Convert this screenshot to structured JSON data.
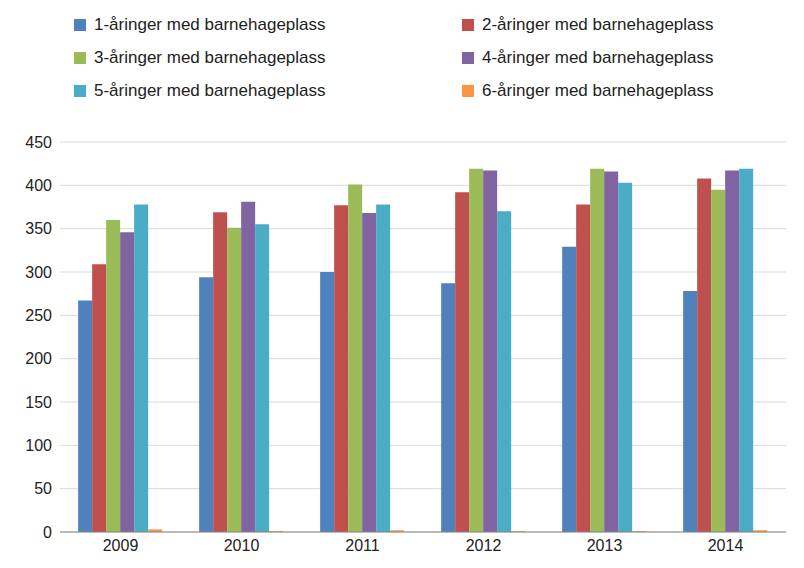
{
  "chart_data": {
    "type": "bar",
    "categories": [
      "2009",
      "2010",
      "2011",
      "2012",
      "2013",
      "2014"
    ],
    "series": [
      {
        "name": "1-åringer med barnehageplass",
        "color": "#4f81bd",
        "values": [
          267,
          294,
          300,
          287,
          329,
          278
        ]
      },
      {
        "name": "2-åringer med barnehageplass",
        "color": "#c0504d",
        "values": [
          309,
          369,
          377,
          392,
          378,
          408
        ]
      },
      {
        "name": "3-åringer med barnehageplass",
        "color": "#9bbb59",
        "values": [
          360,
          351,
          401,
          419,
          419,
          395
        ]
      },
      {
        "name": "4-åringer med barnehageplass",
        "color": "#8064a2",
        "values": [
          346,
          381,
          368,
          417,
          416,
          417
        ]
      },
      {
        "name": "5-åringer med barnehageplass",
        "color": "#4bacc6",
        "values": [
          378,
          355,
          378,
          370,
          403,
          419
        ]
      },
      {
        "name": "6-åringer med barnehageplass",
        "color": "#f79646",
        "values": [
          3,
          1,
          2,
          1,
          1,
          2
        ]
      }
    ],
    "ylim": [
      0,
      450
    ],
    "yticks": [
      0,
      50,
      100,
      150,
      200,
      250,
      300,
      350,
      400,
      450
    ],
    "grid": true,
    "legend": "top"
  }
}
